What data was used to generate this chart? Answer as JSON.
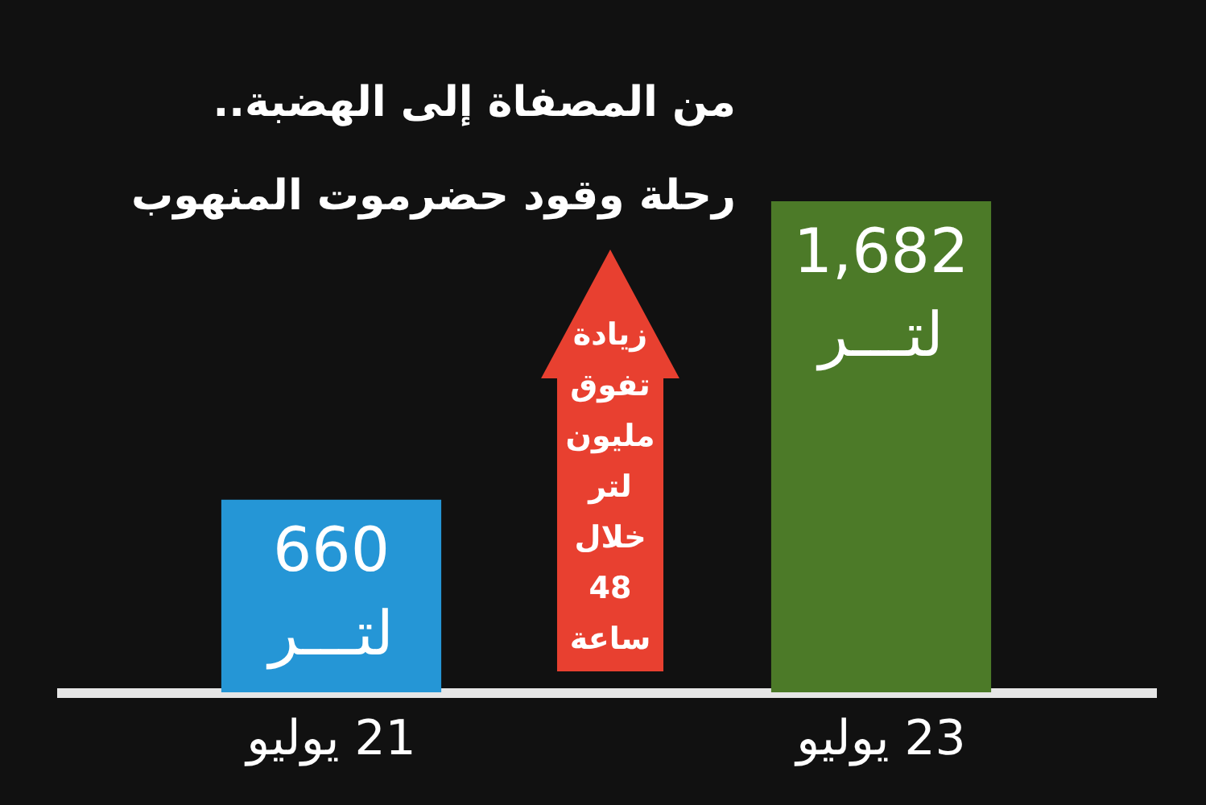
{
  "chart_data": {
    "type": "bar",
    "title": "من المصفاة إلى الهضبة..",
    "subtitle": "رحلة وقود حضرموت المنهوب",
    "categories": [
      "21 يوليو",
      "23 يوليو"
    ],
    "values": [
      660,
      1682
    ],
    "colors": [
      "#2596d6",
      "#4c7a28"
    ],
    "value_labels": [
      "660 لتـــر",
      "1,682 لتـــر"
    ],
    "annotations": [
      "زيادة تفوق مليون لتر خلال 48 ساعة"
    ]
  }
}
